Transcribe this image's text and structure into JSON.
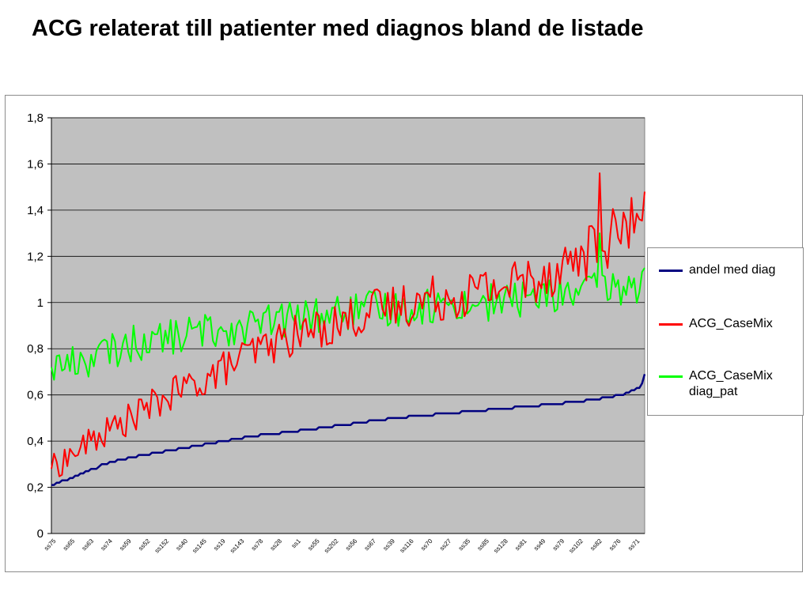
{
  "title": "ACG relaterat till patienter med diagnos bland de listade",
  "chart_data": {
    "type": "line",
    "ylim": [
      0,
      1.8
    ],
    "yticks": [
      "0",
      "0,2",
      "0,4",
      "0,6",
      "0,8",
      "1",
      "1,2",
      "1,4",
      "1,6",
      "1,8"
    ],
    "ytick_values": [
      0,
      0.2,
      0.4,
      0.6,
      0.8,
      1.0,
      1.2,
      1.4,
      1.6,
      1.8
    ],
    "grid": true,
    "legend_position": "right",
    "plot_background": "#c0c0c0",
    "n_points": 225,
    "xtick_labels": [
      "ss75",
      "ss65",
      "ss63",
      "ss74",
      "ss59",
      "ss52",
      "ss152",
      "ss40",
      "ss145",
      "ss19",
      "ss143",
      "ss78",
      "ss28",
      "ss1",
      "ss55",
      "ss202",
      "ss56",
      "ss67",
      "ss39",
      "ss116",
      "ss70",
      "ss27",
      "ss35",
      "ss85",
      "ss128",
      "ss81",
      "ss49",
      "ss79",
      "ss102",
      "ss82",
      "ss76",
      "ss71"
    ],
    "series": [
      {
        "name": "andel med diag",
        "color": "#000080",
        "keypoints": [
          [
            0,
            0.21
          ],
          [
            10,
            0.25
          ],
          [
            20,
            0.3
          ],
          [
            30,
            0.33
          ],
          [
            45,
            0.36
          ],
          [
            60,
            0.39
          ],
          [
            75,
            0.42
          ],
          [
            90,
            0.44
          ],
          [
            110,
            0.47
          ],
          [
            130,
            0.5
          ],
          [
            150,
            0.52
          ],
          [
            170,
            0.54
          ],
          [
            190,
            0.56
          ],
          [
            205,
            0.58
          ],
          [
            215,
            0.6
          ],
          [
            222,
            0.63
          ],
          [
            224,
            0.66
          ]
        ],
        "end_value": 0.69
      },
      {
        "name": "ACG_CaseMix",
        "color": "#ff0000",
        "keypoints": [
          [
            0,
            0.28
          ],
          [
            15,
            0.4
          ],
          [
            30,
            0.5
          ],
          [
            45,
            0.6
          ],
          [
            60,
            0.68
          ],
          [
            75,
            0.78
          ],
          [
            90,
            0.85
          ],
          [
            105,
            0.9
          ],
          [
            120,
            0.96
          ],
          [
            135,
            1.0
          ],
          [
            150,
            1.03
          ],
          [
            165,
            1.06
          ],
          [
            180,
            1.1
          ],
          [
            195,
            1.17
          ],
          [
            210,
            1.27
          ],
          [
            224,
            1.38
          ]
        ],
        "start_value": 0.28,
        "end_value": 1.48,
        "peak": {
          "index": 207,
          "value": 1.56
        }
      },
      {
        "name": "ACG_CaseMix diag_pat",
        "color": "#00ff00",
        "keypoints": [
          [
            0,
            0.72
          ],
          [
            15,
            0.76
          ],
          [
            30,
            0.82
          ],
          [
            45,
            0.85
          ],
          [
            60,
            0.88
          ],
          [
            75,
            0.9
          ],
          [
            90,
            0.93
          ],
          [
            105,
            0.95
          ],
          [
            120,
            0.97
          ],
          [
            135,
            0.98
          ],
          [
            150,
            0.99
          ],
          [
            165,
            1.0
          ],
          [
            180,
            1.02
          ],
          [
            195,
            1.04
          ],
          [
            210,
            1.06
          ],
          [
            224,
            1.07
          ]
        ],
        "start_value": 0.72,
        "end_value": 1.15,
        "peak": {
          "index": 207,
          "value": 1.3
        }
      }
    ]
  }
}
